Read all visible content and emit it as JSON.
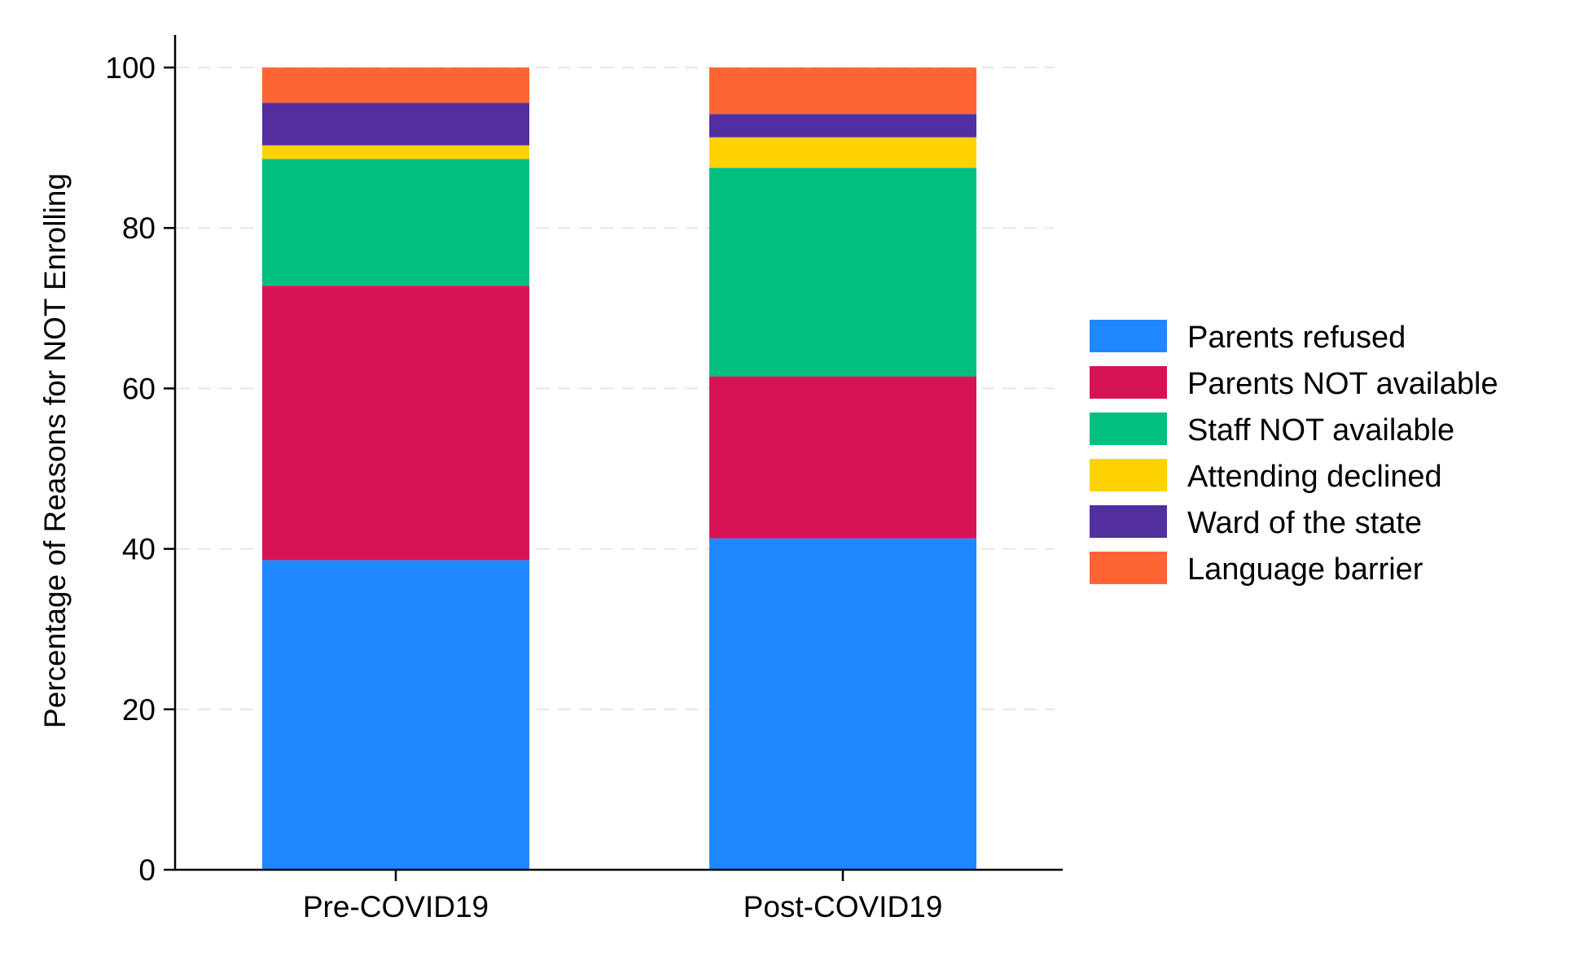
{
  "chart_data": {
    "type": "bar",
    "stacked": true,
    "title": "",
    "xlabel": "",
    "ylabel": "Percentage of Reasons for NOT Enrolling",
    "ylim": [
      0,
      100
    ],
    "yticks": [
      0,
      20,
      40,
      60,
      80,
      100
    ],
    "grid": "horizontal dashed",
    "legend_position": "right",
    "categories": [
      "Pre-COVID19",
      "Post-COVID19"
    ],
    "series": [
      {
        "name": "Parents refused",
        "color": "#1f87ff",
        "values": [
          38.6,
          41.3
        ]
      },
      {
        "name": "Parents NOT available",
        "color": "#d61355",
        "values": [
          34.2,
          20.2
        ]
      },
      {
        "name": "Staff NOT available",
        "color": "#00bf80",
        "values": [
          15.8,
          26.0
        ]
      },
      {
        "name": "Attending declined",
        "color": "#ffd300",
        "values": [
          1.7,
          3.8
        ]
      },
      {
        "name": "Ward of the state",
        "color": "#522ea0",
        "values": [
          5.3,
          2.9
        ]
      },
      {
        "name": "Language barrier",
        "color": "#ff6433",
        "values": [
          4.4,
          5.8
        ]
      }
    ]
  }
}
